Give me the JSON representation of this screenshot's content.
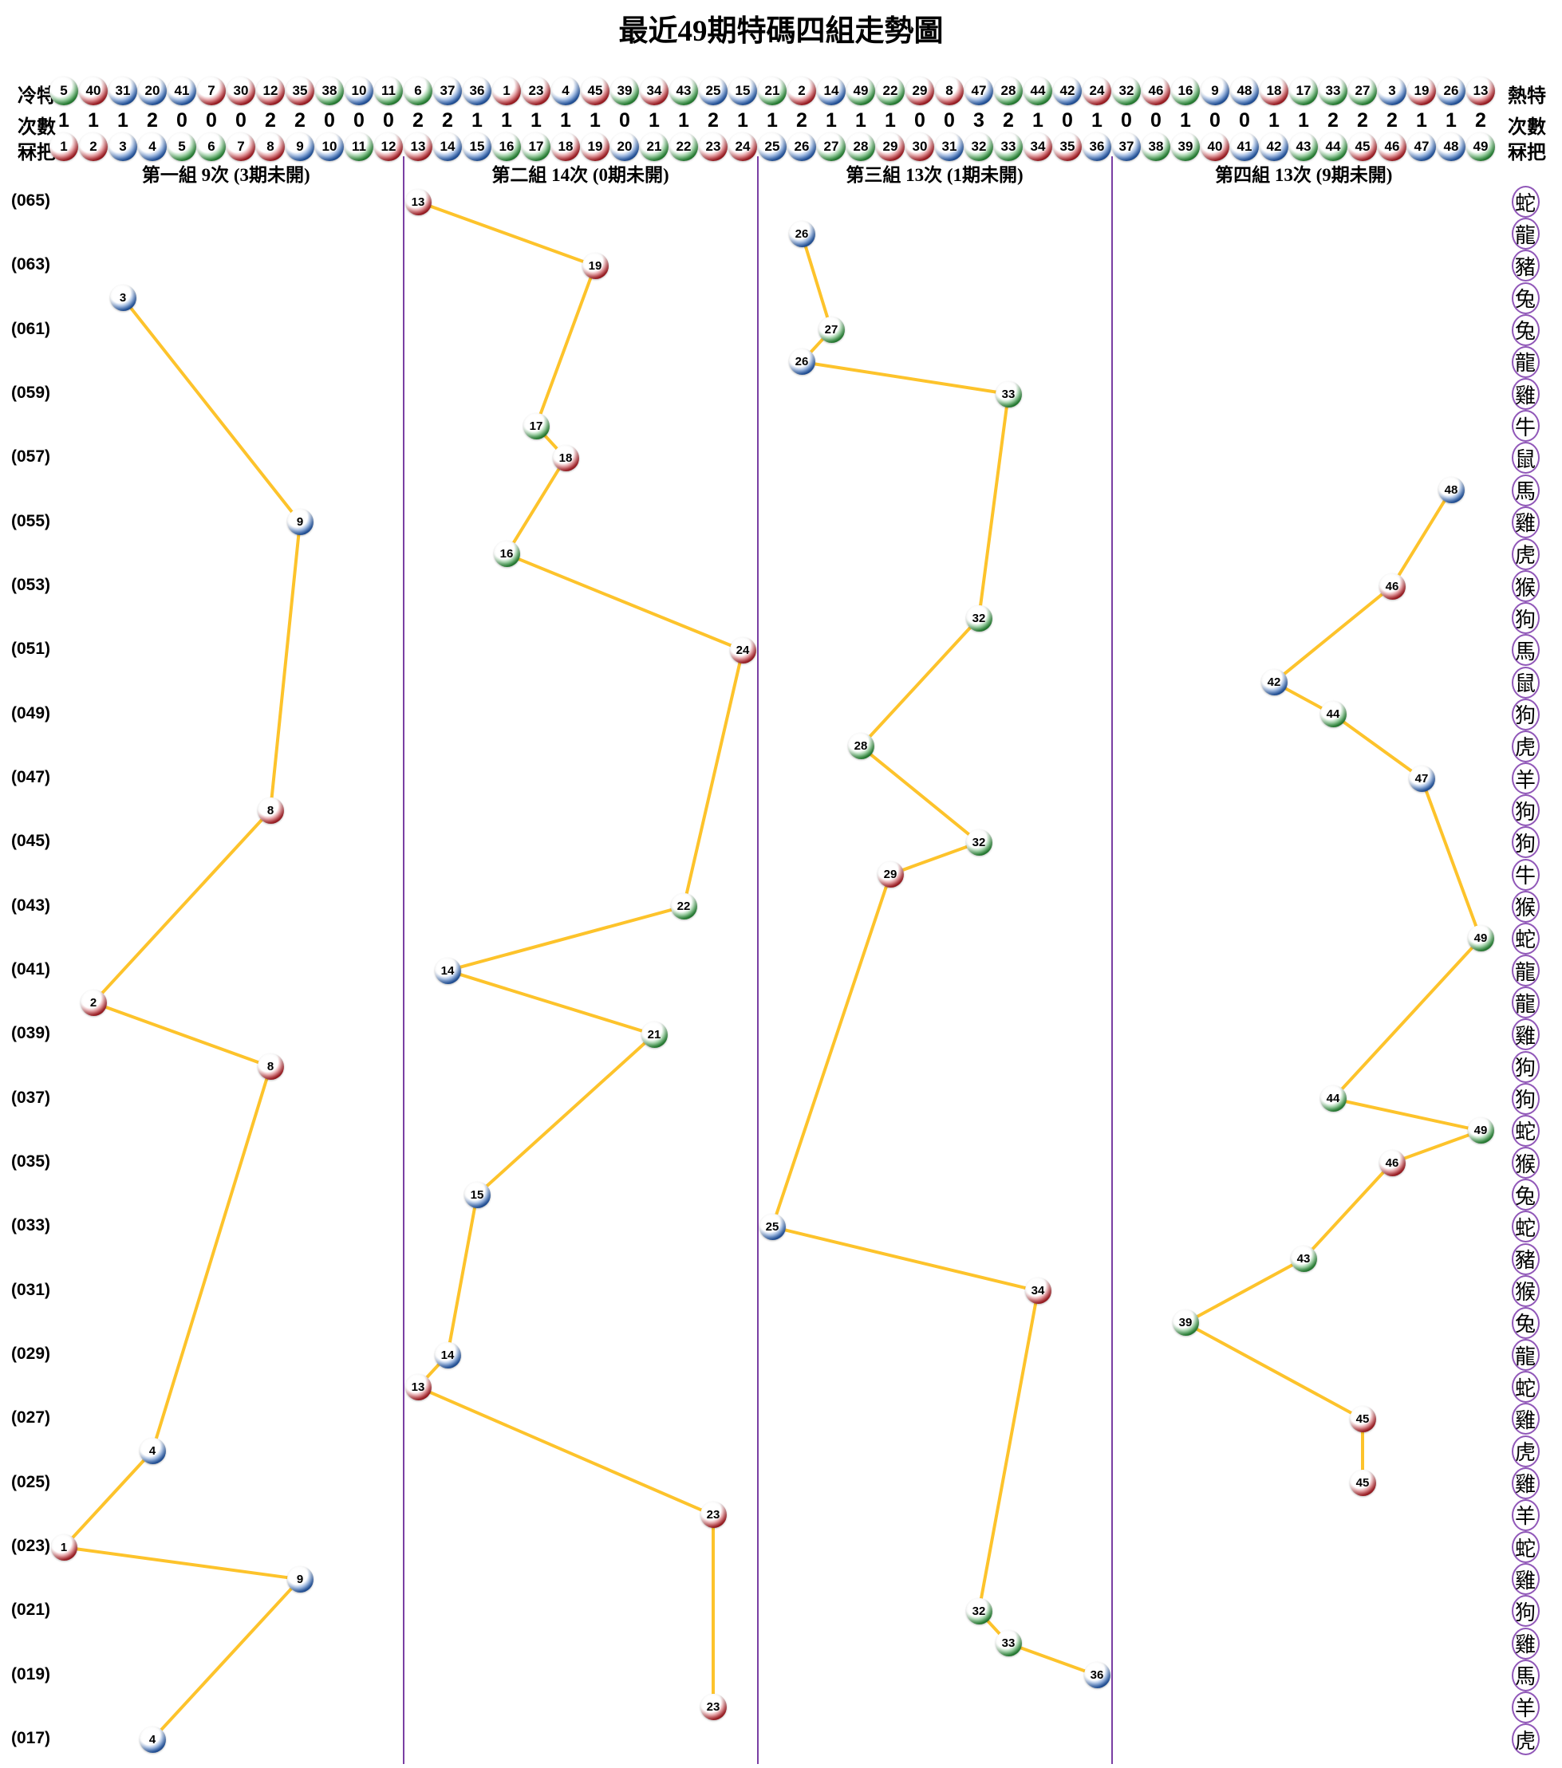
{
  "chart_data": {
    "type": "scatter",
    "title": "最近49期特碼四組走勢圖",
    "legend_position": "none",
    "grid": false,
    "header": {
      "cold_label_left": "冷特",
      "hot_label_right": "熱特",
      "count_label": "次數",
      "number_label": "冧把",
      "cold_order": [
        5,
        40,
        31,
        20,
        41,
        7,
        30,
        12,
        35,
        38,
        10,
        11,
        6,
        37,
        36,
        1,
        23,
        4,
        45,
        39,
        34,
        43,
        25,
        15,
        21,
        2,
        14,
        49,
        22,
        29,
        8,
        47,
        28,
        44,
        42,
        24,
        32,
        46,
        16,
        9,
        48,
        18,
        17,
        33,
        27,
        3,
        19,
        26,
        13
      ],
      "counts": [
        1,
        1,
        1,
        2,
        0,
        0,
        0,
        2,
        2,
        0,
        0,
        0,
        2,
        2,
        1,
        1,
        1,
        1,
        1,
        0,
        1,
        1,
        2,
        1,
        1,
        2,
        1,
        1,
        1,
        0,
        0,
        3,
        2,
        1,
        0,
        1,
        0,
        0,
        1,
        0,
        0,
        1,
        1,
        2,
        2,
        2,
        1,
        1,
        2
      ],
      "numbers": [
        1,
        2,
        3,
        4,
        5,
        6,
        7,
        8,
        9,
        10,
        11,
        12,
        13,
        14,
        15,
        16,
        17,
        18,
        19,
        20,
        21,
        22,
        23,
        24,
        25,
        26,
        27,
        28,
        29,
        30,
        31,
        32,
        33,
        34,
        35,
        36,
        37,
        38,
        39,
        40,
        41,
        42,
        43,
        44,
        45,
        46,
        47,
        48,
        49
      ]
    },
    "groups": [
      {
        "label": "第一組 9次 (3期未開)",
        "from": 1,
        "to": 12
      },
      {
        "label": "第二組 14次 (0期未開)",
        "from": 13,
        "to": 24
      },
      {
        "label": "第三組 13次 (1期未開)",
        "from": 25,
        "to": 36
      },
      {
        "label": "第四組 13次 (9期未開)",
        "from": 37,
        "to": 49
      }
    ],
    "rows": [
      {
        "label": "(065)",
        "number": 13,
        "zodiac": "蛇"
      },
      {
        "label": "",
        "number": 26,
        "zodiac": "龍"
      },
      {
        "label": "(063)",
        "number": 19,
        "zodiac": "豬"
      },
      {
        "label": "",
        "number": 3,
        "zodiac": "兔"
      },
      {
        "label": "(061)",
        "number": 27,
        "zodiac": "兔"
      },
      {
        "label": "",
        "number": 26,
        "zodiac": "龍"
      },
      {
        "label": "(059)",
        "number": 33,
        "zodiac": "雞"
      },
      {
        "label": "",
        "number": 17,
        "zodiac": "牛"
      },
      {
        "label": "(057)",
        "number": 18,
        "zodiac": "鼠"
      },
      {
        "label": "",
        "number": 48,
        "zodiac": "馬"
      },
      {
        "label": "(055)",
        "number": 9,
        "zodiac": "雞"
      },
      {
        "label": "",
        "number": 16,
        "zodiac": "虎"
      },
      {
        "label": "(053)",
        "number": 46,
        "zodiac": "猴"
      },
      {
        "label": "",
        "number": 32,
        "zodiac": "狗"
      },
      {
        "label": "(051)",
        "number": 24,
        "zodiac": "馬"
      },
      {
        "label": "",
        "number": 42,
        "zodiac": "鼠"
      },
      {
        "label": "(049)",
        "number": 44,
        "zodiac": "狗"
      },
      {
        "label": "",
        "number": 28,
        "zodiac": "虎"
      },
      {
        "label": "(047)",
        "number": 47,
        "zodiac": "羊"
      },
      {
        "label": "",
        "number": 8,
        "zodiac": "狗"
      },
      {
        "label": "(045)",
        "number": 32,
        "zodiac": "狗"
      },
      {
        "label": "",
        "number": 29,
        "zodiac": "牛"
      },
      {
        "label": "(043)",
        "number": 22,
        "zodiac": "猴"
      },
      {
        "label": "",
        "number": 49,
        "zodiac": "蛇"
      },
      {
        "label": "(041)",
        "number": 14,
        "zodiac": "龍"
      },
      {
        "label": "",
        "number": 2,
        "zodiac": "龍"
      },
      {
        "label": "(039)",
        "number": 21,
        "zodiac": "雞"
      },
      {
        "label": "",
        "number": 8,
        "zodiac": "狗"
      },
      {
        "label": "(037)",
        "number": 44,
        "zodiac": "狗"
      },
      {
        "label": "",
        "number": 49,
        "zodiac": "蛇"
      },
      {
        "label": "(035)",
        "number": 46,
        "zodiac": "猴"
      },
      {
        "label": "",
        "number": 15,
        "zodiac": "兔"
      },
      {
        "label": "(033)",
        "number": 25,
        "zodiac": "蛇"
      },
      {
        "label": "",
        "number": 43,
        "zodiac": "豬"
      },
      {
        "label": "(031)",
        "number": 34,
        "zodiac": "猴"
      },
      {
        "label": "",
        "number": 39,
        "zodiac": "兔"
      },
      {
        "label": "(029)",
        "number": 14,
        "zodiac": "龍"
      },
      {
        "label": "",
        "number": 13,
        "zodiac": "蛇"
      },
      {
        "label": "(027)",
        "number": 45,
        "zodiac": "雞"
      },
      {
        "label": "",
        "number": 4,
        "zodiac": "虎"
      },
      {
        "label": "(025)",
        "number": 45,
        "zodiac": "雞"
      },
      {
        "label": "",
        "number": 23,
        "zodiac": "羊"
      },
      {
        "label": "(023)",
        "number": 1,
        "zodiac": "蛇"
      },
      {
        "label": "",
        "number": 9,
        "zodiac": "雞"
      },
      {
        "label": "(021)",
        "number": 32,
        "zodiac": "狗"
      },
      {
        "label": "",
        "number": 33,
        "zodiac": "雞"
      },
      {
        "label": "(019)",
        "number": 36,
        "zodiac": "馬"
      },
      {
        "label": "",
        "number": 23,
        "zodiac": "羊"
      },
      {
        "label": "(017)",
        "number": 4,
        "zodiac": "虎"
      }
    ],
    "ball_colors": {
      "red": [
        1,
        2,
        7,
        8,
        12,
        13,
        18,
        19,
        23,
        24,
        29,
        30,
        34,
        35,
        40,
        45,
        46
      ],
      "blue": [
        3,
        4,
        9,
        10,
        14,
        15,
        20,
        25,
        26,
        31,
        36,
        37,
        41,
        42,
        47,
        48
      ],
      "green": [
        5,
        6,
        11,
        16,
        17,
        21,
        22,
        27,
        28,
        32,
        33,
        38,
        39,
        43,
        44,
        49
      ]
    },
    "colors": {
      "red": "#c5232b",
      "red_dark": "#7e0e14",
      "blue": "#2a66c0",
      "blue_dark": "#12397e",
      "green": "#2f9e3f",
      "green_dark": "#186627",
      "line": "#fdc32b",
      "divider": "#7a3fa3",
      "zodiac_border": "#9057b8",
      "text": "#000000"
    }
  }
}
